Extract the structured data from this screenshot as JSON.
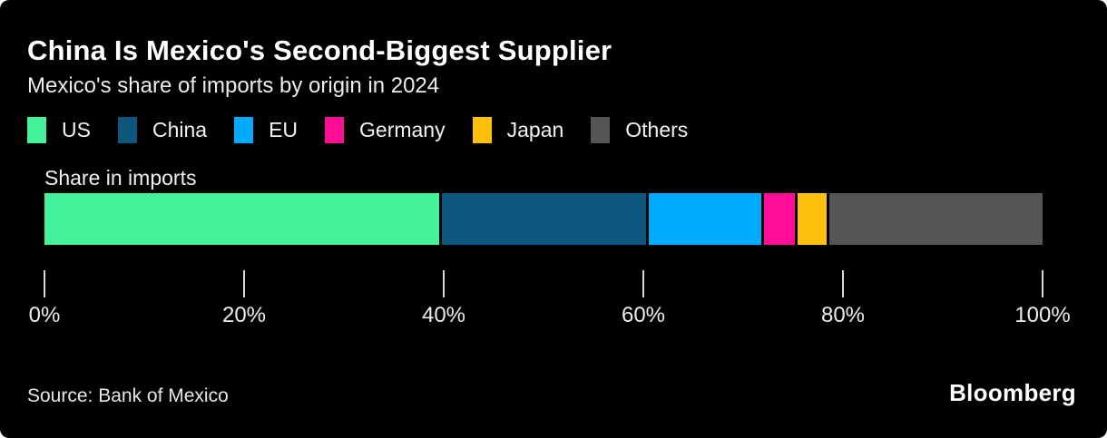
{
  "header": {
    "title": "China Is Mexico's Second-Biggest Supplier",
    "subtitle": "Mexico's share of imports by origin in 2024"
  },
  "chart_data": {
    "type": "bar",
    "variant": "horizontal-stacked",
    "title": "China Is Mexico's Second-Biggest Supplier",
    "subtitle": "Mexico's share of imports by origin in 2024",
    "bar_label": "Share in imports",
    "categories": [
      "US",
      "China",
      "EU",
      "Germany",
      "Japan",
      "Others"
    ],
    "values": [
      40.1,
      20.7,
      11.5,
      3.1,
      2.9,
      21.7
    ],
    "unit": "%",
    "colors": [
      "#46F19C",
      "#0D567E",
      "#00ABFF",
      "#FF0D94",
      "#FCC00D",
      "#545557"
    ],
    "x_tick_labels": [
      "0%",
      "20%",
      "40%",
      "60%",
      "80%",
      "100%"
    ],
    "x_tick_values": [
      0,
      20,
      40,
      60,
      80,
      100
    ],
    "xlim": [
      0,
      100
    ],
    "grid": false,
    "legend_position": "top"
  },
  "footer": {
    "source": "Source: Bank of Mexico",
    "logo": "Bloomberg"
  }
}
